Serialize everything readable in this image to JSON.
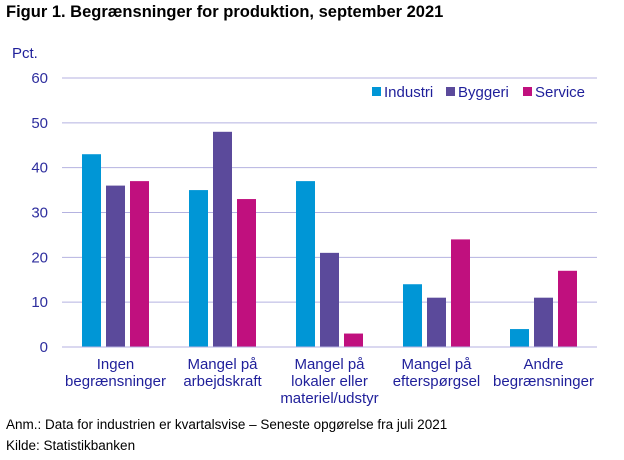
{
  "title": "Figur 1. Begrænsninger for produktion, september 2021",
  "note": "Anm.: Data for industrien er kvartalsvise – Seneste opgørelse fra juli 2021",
  "source": "Kilde: Statistikbanken",
  "colors": {
    "Industri": "#0096d6",
    "Byggeri": "#5b4a9b",
    "Service": "#c0107e",
    "grid": "#b4b2e0",
    "axis": "#b4b2e0"
  },
  "chart_data": {
    "type": "bar",
    "ylabel": "Pct.",
    "ylim": [
      0,
      60
    ],
    "yticks": [
      "0",
      "10",
      "20",
      "30",
      "40",
      "50",
      "60"
    ],
    "grid": true,
    "legend_position": "top-right",
    "categories": [
      [
        "Ingen",
        "begrænsninger"
      ],
      [
        "Mangel på",
        "arbejdskraft"
      ],
      [
        "Mangel på",
        "lokaler eller",
        "materiel/udstyr"
      ],
      [
        "Mangel på",
        "efterspørgsel"
      ],
      [
        "Andre",
        "begrænsninger"
      ]
    ],
    "series": [
      {
        "name": "Industri",
        "values": [
          43,
          35,
          37,
          14,
          4
        ]
      },
      {
        "name": "Byggeri",
        "values": [
          36,
          48,
          21,
          11,
          11
        ]
      },
      {
        "name": "Service",
        "values": [
          37,
          33,
          3,
          24,
          17
        ]
      }
    ]
  }
}
